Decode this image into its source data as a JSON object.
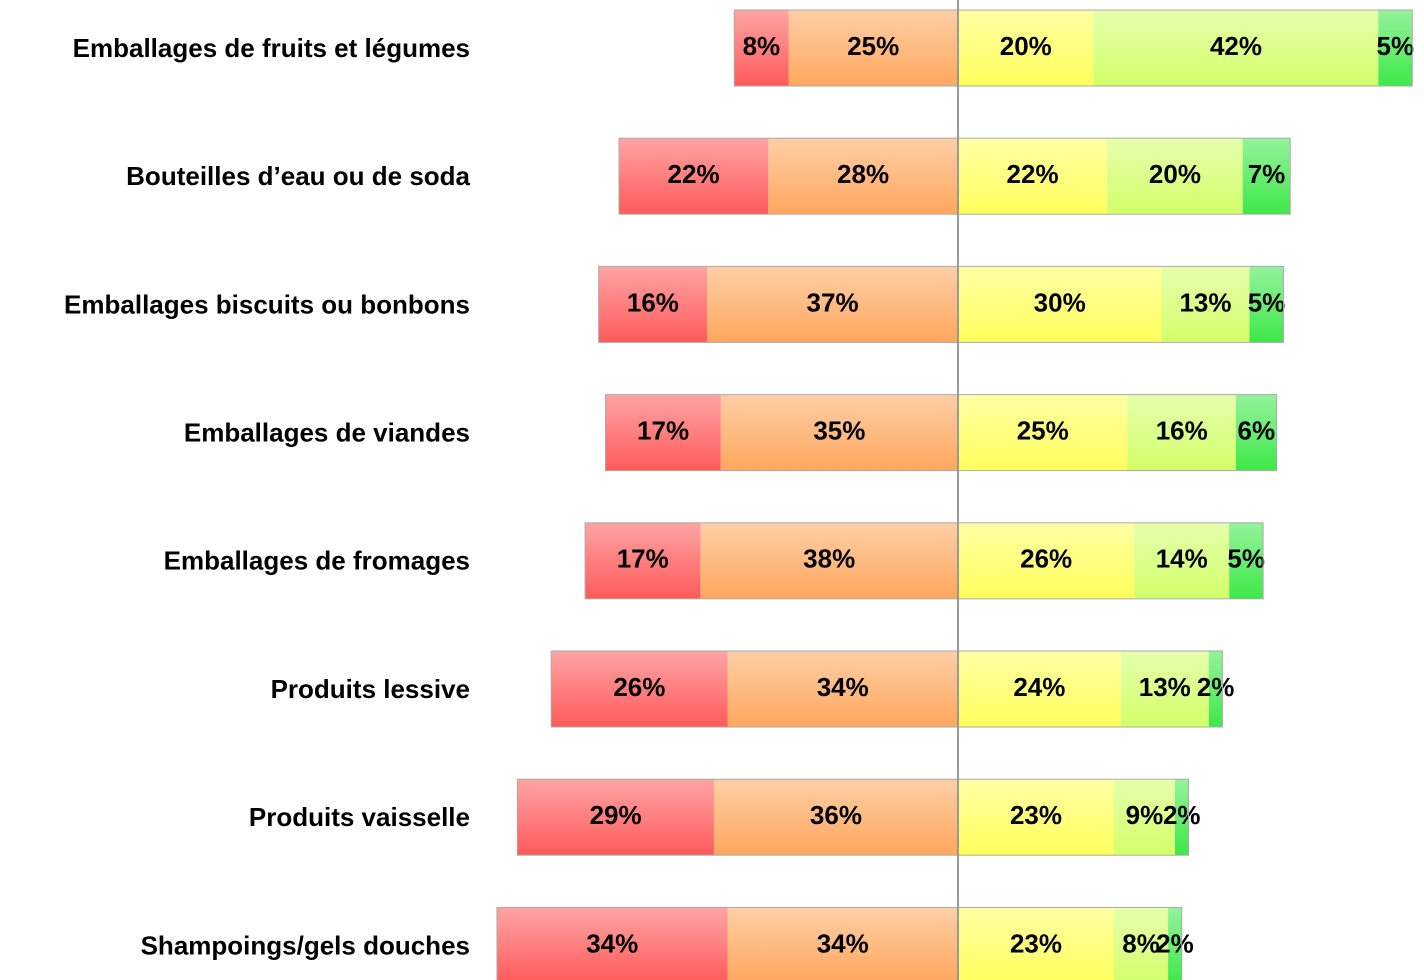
{
  "chart_data": {
    "type": "diverging-bar",
    "categories": [
      "Emballages de fruits et légumes",
      "Bouteilles d’eau ou de soda",
      "Emballages biscuits ou bonbons",
      "Emballages de viandes",
      "Emballages de fromages",
      "Produits lessive",
      "Produits vaisselle",
      "Shampoings/gels douches"
    ],
    "series": [
      {
        "color": "#ff5a5a",
        "side": "left",
        "values": [
          8,
          22,
          16,
          17,
          17,
          26,
          29,
          34
        ],
        "value_labels": [
          "8%",
          "22%",
          "16%",
          "17%",
          "17%",
          "26%",
          "29%",
          "34%"
        ]
      },
      {
        "color": "#ffa75e",
        "side": "left",
        "values": [
          25,
          28,
          37,
          35,
          38,
          34,
          36,
          34
        ],
        "value_labels": [
          "25%",
          "28%",
          "37%",
          "35%",
          "38%",
          "34%",
          "36%",
          "34%"
        ]
      },
      {
        "color": "#ffff5c",
        "side": "right",
        "values": [
          20,
          22,
          30,
          25,
          26,
          24,
          23,
          23
        ],
        "value_labels": [
          "20%",
          "22%",
          "30%",
          "25%",
          "26%",
          "24%",
          "23%",
          "23%"
        ]
      },
      {
        "color": "#d2ff6a",
        "side": "right",
        "values": [
          42,
          20,
          13,
          16,
          14,
          13,
          9,
          8
        ],
        "value_labels": [
          "42%",
          "20%",
          "13%",
          "16%",
          "14%",
          "13%",
          "9%",
          "8%"
        ]
      },
      {
        "color": "#3ee84a",
        "side": "right",
        "values": [
          5,
          7,
          5,
          6,
          5,
          2,
          2,
          2
        ],
        "value_labels": [
          "5%",
          "7%",
          "5%",
          "6%",
          "5%",
          "2%",
          "2%",
          "2%"
        ]
      }
    ]
  }
}
